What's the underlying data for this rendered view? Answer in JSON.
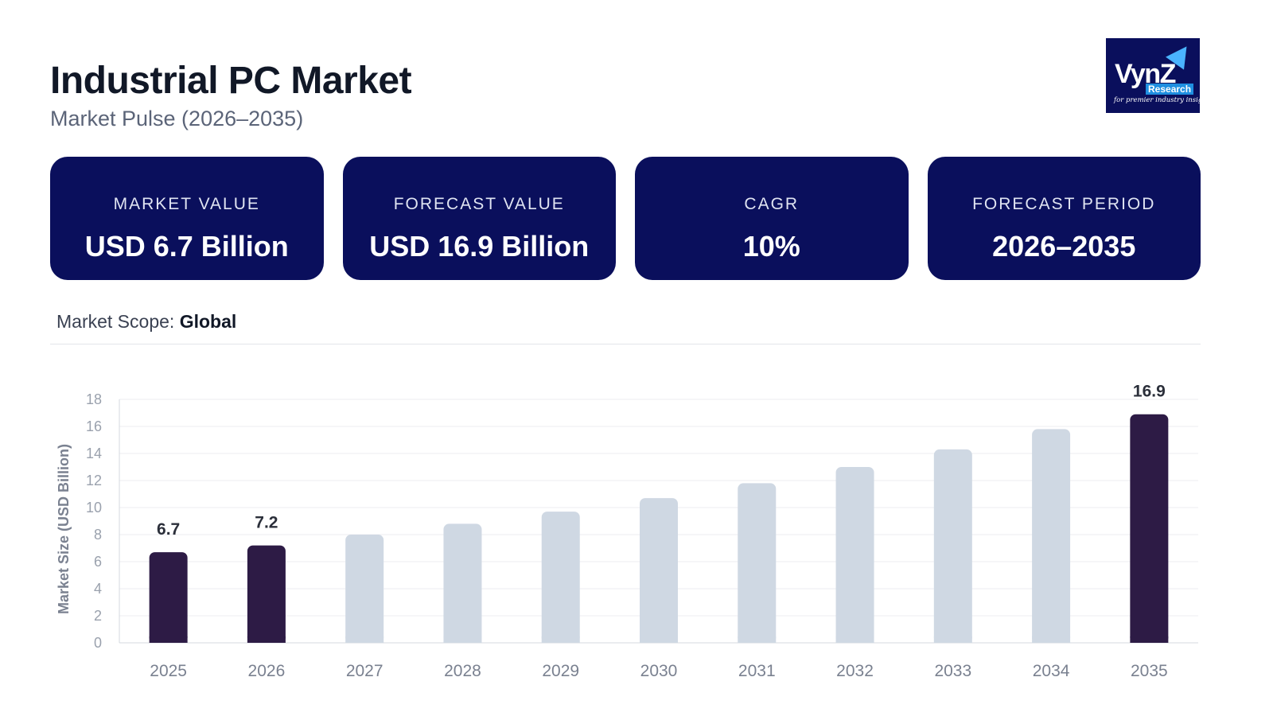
{
  "header": {
    "title": "Industrial PC Market",
    "subtitle": "Market Pulse (2026–2035)"
  },
  "logo": {
    "wordmark": "VynZ",
    "sub": "Research",
    "tagline": "for premier industry insights"
  },
  "cards": [
    {
      "label": "MARKET VALUE",
      "value": "USD 6.7 Billion"
    },
    {
      "label": "FORECAST VALUE",
      "value": "USD 16.9 Billion"
    },
    {
      "label": "CAGR",
      "value": "10%"
    },
    {
      "label": "FORECAST PERIOD",
      "value": "2026–2035"
    }
  ],
  "scope": {
    "label": "Market Scope:",
    "value": "Global"
  },
  "colors": {
    "card_bg": "#0a0f5c",
    "highlight_bar": "#2d1b45",
    "default_bar": "#cfd8e3",
    "grid": "#eceef2"
  },
  "chart_data": {
    "type": "bar",
    "categories": [
      "2025",
      "2026",
      "2027",
      "2028",
      "2029",
      "2030",
      "2031",
      "2032",
      "2033",
      "2034",
      "2035"
    ],
    "values": [
      6.7,
      7.2,
      8.0,
      8.8,
      9.7,
      10.7,
      11.8,
      13.0,
      14.3,
      15.8,
      16.9
    ],
    "highlighted": [
      true,
      true,
      false,
      false,
      false,
      false,
      false,
      false,
      false,
      false,
      true
    ],
    "data_labels": [
      "6.7",
      "7.2",
      "",
      "",
      "",
      "",
      "",
      "",
      "",
      "",
      "16.9"
    ],
    "ylabel": "Market Size (USD Billion)",
    "ylim": [
      0,
      18
    ],
    "yticks": [
      0,
      2,
      4,
      6,
      8,
      10,
      12,
      14,
      16,
      18
    ],
    "grid": true
  }
}
